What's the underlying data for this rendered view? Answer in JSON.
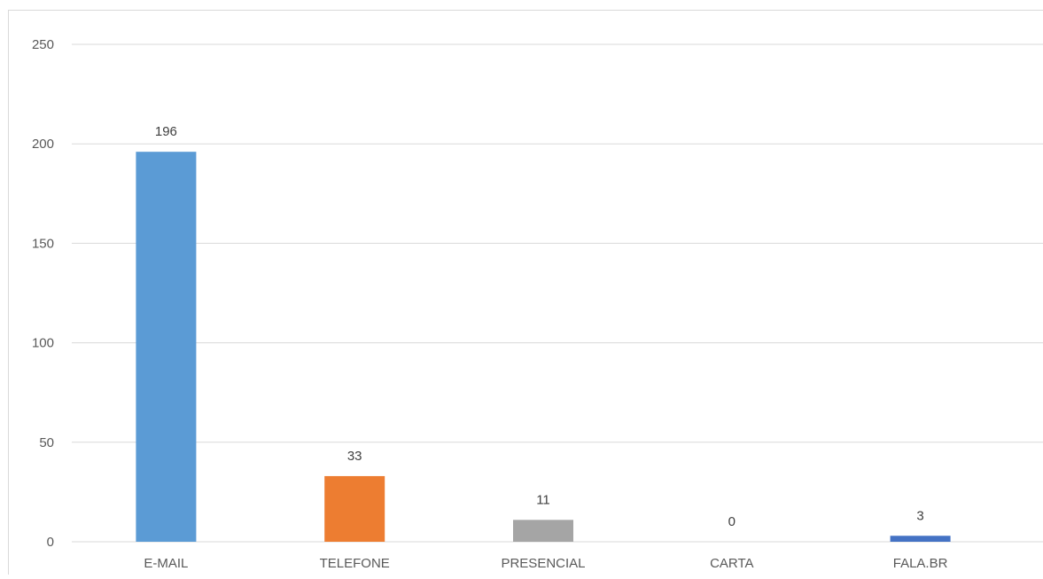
{
  "chart_data": {
    "type": "bar",
    "categories": [
      "E-MAIL",
      "TELEFONE",
      "PRESENCIAL",
      "CARTA",
      "FALA.BR"
    ],
    "values": [
      196,
      33,
      11,
      0,
      3
    ],
    "data_labels": [
      "196",
      "33",
      "11",
      "0",
      "3"
    ],
    "colors": [
      "#5b9bd5",
      "#ed7d31",
      "#a5a5a5",
      "#ffc000",
      "#4472c4"
    ],
    "ylim": [
      0,
      250
    ],
    "yticks": [
      0,
      50,
      100,
      150,
      200,
      250
    ],
    "grid": true,
    "title": "",
    "xlabel": "",
    "ylabel": ""
  }
}
